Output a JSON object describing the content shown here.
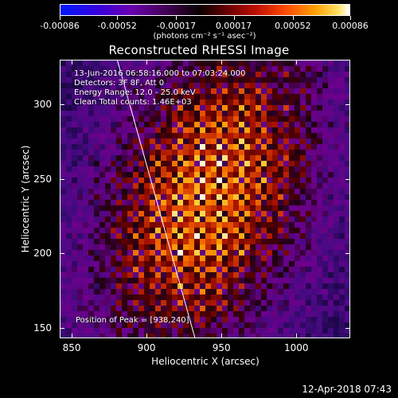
{
  "colorbar": {
    "tick_labels": [
      "-0.00086",
      "-0.00052",
      "-0.00017",
      "0.00017",
      "0.00052",
      "0.00086"
    ],
    "units": "(photons cm⁻² s⁻¹ asec⁻²)",
    "range": [
      -0.00086,
      0.00086
    ]
  },
  "chart_data": {
    "type": "heatmap",
    "title": "Reconstructed RHESSI Image",
    "xlabel": "Heliocentric X (arcsec)",
    "ylabel": "Heliocentric Y (arcsec)",
    "xlim": [
      842,
      1036
    ],
    "ylim": [
      143,
      330
    ],
    "x_ticks": [
      850,
      900,
      950,
      1000
    ],
    "y_ticks": [
      150,
      200,
      250,
      300
    ],
    "x_tick_labels": [
      "850",
      "900",
      "950",
      "1000"
    ],
    "y_tick_labels": [
      "150",
      "200",
      "250",
      "300"
    ],
    "peak_position": [
      938,
      240
    ],
    "limb_line": {
      "x": [
        880,
        932
      ],
      "y": [
        330,
        143
      ]
    },
    "grid": false,
    "annotations": {
      "time_range": "13-Jun-2016 06:58:16.000 to 07:03:24.000",
      "detectors": "Detectors: 3F 8F, Att 0",
      "energy": "Energy Range: 12.0 - 25.0 keV",
      "method": "Clean    Total counts: 1.46E+03",
      "peak": "Position of Peak = [938,240]"
    }
  },
  "footer": {
    "timestamp": "12-Apr-2018 07:43"
  }
}
